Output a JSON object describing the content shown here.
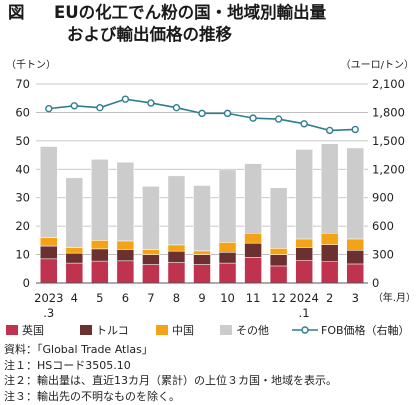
{
  "figure": {
    "number": "図",
    "title_line1": "EUの化工でん粉の国・地域別輸出量",
    "title_line2": "および輸出価格の推移"
  },
  "chart_data": {
    "type": "bar",
    "stacked": true,
    "categories": [
      "2023\n.3",
      "4",
      "5",
      "6",
      "7",
      "8",
      "9",
      "10",
      "11",
      "12",
      "2024\n.1",
      "2",
      "3"
    ],
    "left_axis_unit": "（千トン）",
    "right_axis_unit": "（ユーロ/トン）",
    "x_axis_unit": "（年.月）",
    "ylim": [
      0,
      70
    ],
    "yticks": [
      0,
      10,
      20,
      30,
      40,
      50,
      60,
      70
    ],
    "y2lim": [
      0,
      2100
    ],
    "y2ticks": [
      "0",
      "300",
      "600",
      "900",
      "1,200",
      "1,500",
      "1,800",
      "2,100"
    ],
    "grid": true,
    "legend_position": "bottom",
    "series": [
      {
        "name": "英国",
        "color": "#c0334f",
        "values": [
          8.5,
          7.0,
          7.7,
          7.8,
          6.5,
          7.2,
          6.5,
          7.0,
          9.0,
          6.0,
          8.0,
          7.5,
          6.7
        ]
      },
      {
        "name": "トルコ",
        "color": "#6b3030",
        "values": [
          4.5,
          3.5,
          4.3,
          4.0,
          3.5,
          4.0,
          3.5,
          3.8,
          5.0,
          4.0,
          4.5,
          6.0,
          4.8
        ]
      },
      {
        "name": "中国",
        "color": "#f5a316",
        "values": [
          3.0,
          2.0,
          3.0,
          3.0,
          1.8,
          2.2,
          1.3,
          3.5,
          3.5,
          2.2,
          3.0,
          4.0,
          4.0
        ]
      },
      {
        "name": "その他",
        "color": "#cccccc",
        "values": [
          32.0,
          24.5,
          28.5,
          27.7,
          22.2,
          24.3,
          23.0,
          25.5,
          24.5,
          21.3,
          31.5,
          31.5,
          32.0
        ]
      }
    ],
    "line_series": {
      "name": "FOB価格（右軸）",
      "color": "#2e7d8c",
      "axis": "right",
      "values": [
        1840,
        1870,
        1850,
        1940,
        1900,
        1850,
        1790,
        1790,
        1740,
        1730,
        1680,
        1610,
        1620
      ]
    }
  },
  "notes": [
    "資料：「Global Trade Atlas」",
    "注１：HSコード3505.10",
    "注２：輸出量は、直近13カ月（累計）の上位３カ国・地域を表示。",
    "注３：輸出先の不明なものを除く。"
  ]
}
